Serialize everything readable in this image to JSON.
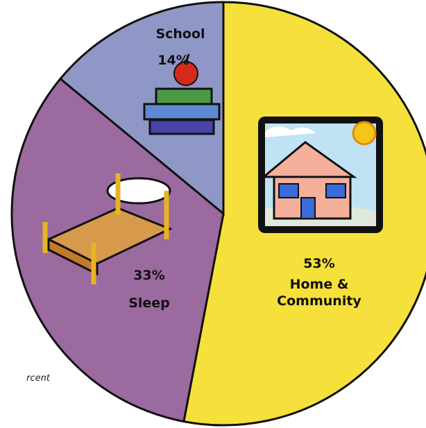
{
  "chart_data": {
    "type": "pie",
    "categories": [
      "Home & Community",
      "Sleep",
      "School"
    ],
    "values": [
      53,
      33,
      14
    ],
    "value_labels": [
      "53%",
      "33%",
      "14%"
    ],
    "colors": [
      "#f6e03b",
      "#9b6a9f",
      "#8f97c6"
    ],
    "note": "rcent"
  }
}
